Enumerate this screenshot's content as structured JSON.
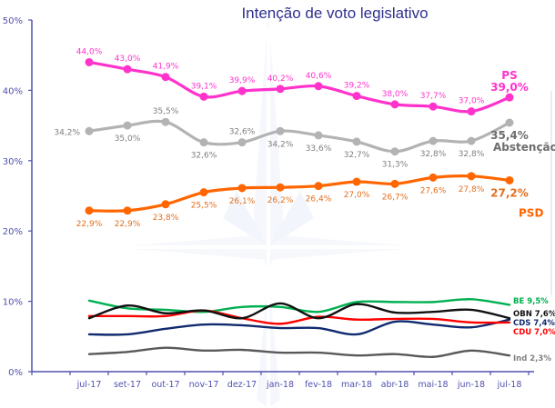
{
  "chart_data": {
    "type": "line",
    "title": "Intenção de voto legislativo",
    "xlabel": "",
    "ylabel": "",
    "ylim": [
      0,
      50
    ],
    "yticks": [
      "0%",
      "10%",
      "20%",
      "30%",
      "40%",
      "50%"
    ],
    "yticks_values": [
      0,
      10,
      20,
      30,
      40,
      50
    ],
    "categories": [
      "jul-17",
      "set-17",
      "out-17",
      "nov-17",
      "dez-17",
      "jan-18",
      "fev-18",
      "mar-18",
      "abr-18",
      "mai-18",
      "jun-18",
      "jul-18"
    ],
    "grid": false,
    "legend": "inline-right",
    "series": [
      {
        "name": "PS",
        "color": "#ff33cc",
        "markers": true,
        "values": [
          44.0,
          43.0,
          41.9,
          39.1,
          39.9,
          40.2,
          40.6,
          39.2,
          38.0,
          37.7,
          37.0,
          39.0
        ],
        "labels": [
          "44,0%",
          "43,0%",
          "41,9%",
          "39,1%",
          "39,9%",
          "40,2%",
          "40,6%",
          "39,2%",
          "38,0%",
          "37,7%",
          "37,0%",
          "39,0%"
        ],
        "label_position": [
          "above",
          "above",
          "above",
          "above",
          "above",
          "above",
          "above",
          "above",
          "above",
          "above",
          "above",
          "above"
        ],
        "end_name": "PS",
        "end_value": "39,0%"
      },
      {
        "name": "Abstenção",
        "color": "#b3b3b3",
        "label_color": "#7f7f7f",
        "end_color": "#6d6d6d",
        "markers": true,
        "values": [
          34.2,
          35.0,
          35.5,
          32.6,
          32.6,
          34.2,
          33.6,
          32.7,
          31.3,
          32.8,
          32.8,
          35.4
        ],
        "labels": [
          "34,2%",
          "35,0%",
          "35,5%",
          "32,6%",
          "32,6%",
          "34,2%",
          "33,6%",
          "32,7%",
          "31,3%",
          "32,8%",
          "32,8%",
          "35,4%"
        ],
        "label_position": [
          "left",
          "below",
          "above",
          "below",
          "above",
          "below",
          "below",
          "below",
          "below",
          "below",
          "below",
          "below"
        ],
        "end_name": "Abstenção",
        "end_value": "35,4%"
      },
      {
        "name": "PSD",
        "color": "#ff6600",
        "label_color": "#e07020",
        "markers": true,
        "values": [
          22.9,
          22.9,
          23.8,
          25.5,
          26.1,
          26.2,
          26.4,
          27.0,
          26.7,
          27.6,
          27.8,
          27.2
        ],
        "labels": [
          "22,9%",
          "22,9%",
          "23,8%",
          "25,5%",
          "26,1%",
          "26,2%",
          "26,4%",
          "27,0%",
          "26,7%",
          "27,6%",
          "27,8%",
          "27,2%"
        ],
        "label_position": [
          "below",
          "below",
          "below",
          "below",
          "below",
          "below",
          "below",
          "below",
          "below",
          "below",
          "below",
          "below"
        ],
        "end_name": "PSD",
        "end_value": "27,2%"
      },
      {
        "name": "BE",
        "color": "#00b050",
        "markers": false,
        "values": [
          10.1,
          9.0,
          8.8,
          8.5,
          9.2,
          9.2,
          8.5,
          9.9,
          9.9,
          9.9,
          10.3,
          9.5
        ],
        "end_label": "BE 9,5%"
      },
      {
        "name": "OBN",
        "color": "#111111",
        "markers": false,
        "values": [
          7.6,
          9.4,
          8.3,
          8.7,
          7.6,
          9.7,
          7.6,
          9.6,
          8.4,
          8.5,
          8.8,
          7.6
        ],
        "end_label": "OBN 7,6%"
      },
      {
        "name": "CDS",
        "color": "#0f2a6e",
        "markers": false,
        "values": [
          5.3,
          5.3,
          6.1,
          6.7,
          6.6,
          6.2,
          6.2,
          5.3,
          7.1,
          6.7,
          6.3,
          7.4
        ],
        "end_label": "CDS 7,4%"
      },
      {
        "name": "CDU",
        "color": "#ff0000",
        "markers": false,
        "values": [
          7.9,
          7.9,
          7.9,
          8.7,
          7.6,
          6.8,
          7.8,
          7.4,
          7.5,
          7.5,
          7.0,
          7.0
        ],
        "end_label": "CDU 7,0%"
      },
      {
        "name": "Ind",
        "color": "#595959",
        "label_color": "#808080",
        "markers": false,
        "values": [
          2.5,
          2.8,
          3.4,
          3.0,
          3.1,
          2.7,
          2.7,
          2.3,
          2.5,
          2.1,
          3.0,
          2.3
        ],
        "end_label": "Ind 2,3%"
      }
    ],
    "axis_color": "#5050b0"
  }
}
